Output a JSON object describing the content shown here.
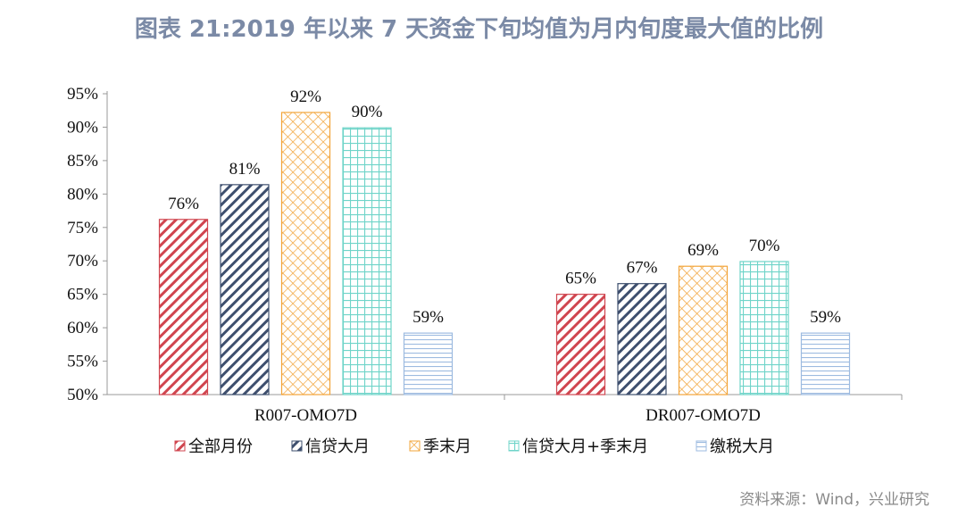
{
  "title": "图表 21:2019 年以来 7 天资金下旬均值为月内旬度最大值的比例",
  "source": "资料来源：Wind，兴业研究",
  "chart_data": {
    "type": "bar",
    "categories": [
      "R007-OMO7D",
      "DR007-OMO7D"
    ],
    "ylim": [
      50,
      95
    ],
    "yticks": [
      "50%",
      "55%",
      "60%",
      "65%",
      "70%",
      "75%",
      "80%",
      "85%",
      "90%",
      "95%"
    ],
    "grid": false,
    "legend_position": "bottom",
    "series": [
      {
        "name": "全部月份",
        "values": [
          76.2,
          65.0
        ],
        "labels": [
          "76%",
          "65%"
        ],
        "color": "#d0454f",
        "pattern": "diagonal"
      },
      {
        "name": "信贷大月",
        "values": [
          81.4,
          66.6
        ],
        "labels": [
          "81%",
          "67%"
        ],
        "color": "#3e4f6e",
        "pattern": "diagonal"
      },
      {
        "name": "季末月",
        "values": [
          92.2,
          69.2
        ],
        "labels": [
          "92%",
          "69%"
        ],
        "color": "#f2a43a",
        "pattern": "crosshatch"
      },
      {
        "name": "信贷大月+季末月",
        "values": [
          89.9,
          69.9
        ],
        "labels": [
          "90%",
          "70%"
        ],
        "color": "#6fd4c9",
        "pattern": "grid"
      },
      {
        "name": "缴税大月",
        "values": [
          59.2,
          59.2
        ],
        "labels": [
          "59%",
          "59%"
        ],
        "color": "#9dbbe0",
        "pattern": "horizontal"
      }
    ]
  }
}
